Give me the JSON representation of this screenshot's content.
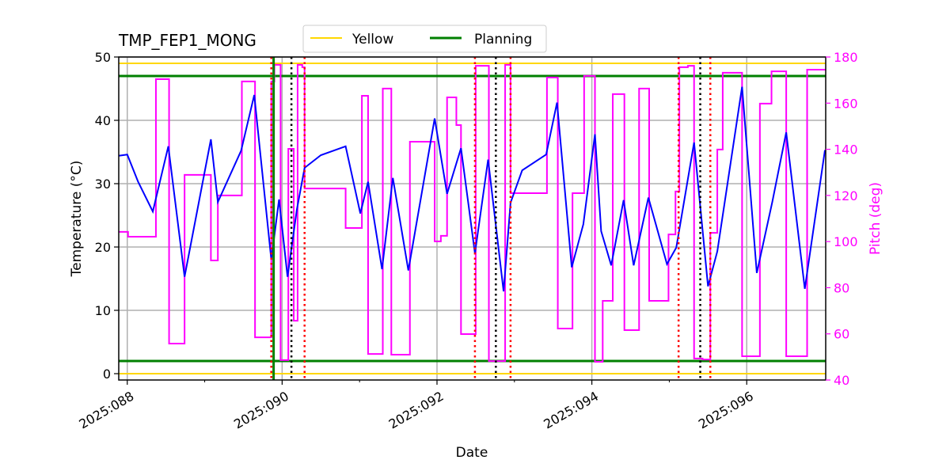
{
  "chart_data": {
    "type": "line",
    "title": "TMP_FEP1_MONG",
    "xlabel": "Date",
    "ylabel": "Temperature (°C)",
    "ylabel_right": "Pitch (deg)",
    "xlim": [
      87.89,
      97.02
    ],
    "ylim": [
      -1,
      50
    ],
    "ylim_right": [
      40,
      180
    ],
    "x_ticks": [
      88,
      90,
      92,
      94,
      96
    ],
    "x_tick_labels": [
      "2025:088",
      "2025:090",
      "2025:092",
      "2025:094",
      "2025:096"
    ],
    "x_minor_ticks": [
      89,
      91,
      93,
      95
    ],
    "y_ticks": [
      0,
      10,
      20,
      30,
      40,
      50
    ],
    "y_ticks_right": [
      40,
      60,
      80,
      100,
      120,
      140,
      160,
      180
    ],
    "grid": true,
    "legend_placement": "top-center",
    "colors": {
      "temperature": "#0000ff",
      "pitch": "#ff00ff",
      "yellow": "#ffd700",
      "planning": "#008000",
      "red_marker": "#ff0000",
      "black_marker": "#000000",
      "grid": "#b0b0b0"
    },
    "legend": [
      {
        "label": "Yellow",
        "color": "#ffd700"
      },
      {
        "label": "Planning",
        "color": "#008000"
      }
    ],
    "limits": {
      "yellow": [
        0,
        49
      ],
      "planning": [
        2,
        47
      ]
    },
    "temperature": [
      [
        87.89,
        34.4
      ],
      [
        88.0,
        34.6
      ],
      [
        88.14,
        30.3
      ],
      [
        88.33,
        25.6
      ],
      [
        88.53,
        35.9
      ],
      [
        88.74,
        15.3
      ],
      [
        89.08,
        37.0
      ],
      [
        89.17,
        27.1
      ],
      [
        89.47,
        35.2
      ],
      [
        89.64,
        44.0
      ],
      [
        89.86,
        18.0
      ],
      [
        89.96,
        27.5
      ],
      [
        90.07,
        15.3
      ],
      [
        90.19,
        25.9
      ],
      [
        90.29,
        32.5
      ],
      [
        90.5,
        34.5
      ],
      [
        90.82,
        35.9
      ],
      [
        91.01,
        25.3
      ],
      [
        91.11,
        30.3
      ],
      [
        91.29,
        16.5
      ],
      [
        91.43,
        30.9
      ],
      [
        91.63,
        16.3
      ],
      [
        91.97,
        40.3
      ],
      [
        92.13,
        28.4
      ],
      [
        92.31,
        35.6
      ],
      [
        92.49,
        19.0
      ],
      [
        92.66,
        33.8
      ],
      [
        92.86,
        13.0
      ],
      [
        92.95,
        27.0
      ],
      [
        93.1,
        32.1
      ],
      [
        93.41,
        34.6
      ],
      [
        93.55,
        42.8
      ],
      [
        93.74,
        16.8
      ],
      [
        93.89,
        23.6
      ],
      [
        94.04,
        37.8
      ],
      [
        94.12,
        22.5
      ],
      [
        94.25,
        17.1
      ],
      [
        94.41,
        27.4
      ],
      [
        94.54,
        17.1
      ],
      [
        94.73,
        27.8
      ],
      [
        94.97,
        17.3
      ],
      [
        95.09,
        19.9
      ],
      [
        95.32,
        36.5
      ],
      [
        95.5,
        13.8
      ],
      [
        95.62,
        19.3
      ],
      [
        95.94,
        45.3
      ],
      [
        96.13,
        15.9
      ],
      [
        96.33,
        27.1
      ],
      [
        96.51,
        38.1
      ],
      [
        96.75,
        13.4
      ],
      [
        97.01,
        35.3
      ]
    ],
    "pitch_steps": [
      [
        87.89,
        104.2
      ],
      [
        88.01,
        102.1
      ],
      [
        88.37,
        170.4
      ],
      [
        88.54,
        55.8
      ],
      [
        88.74,
        128.9
      ],
      [
        89.08,
        91.8
      ],
      [
        89.17,
        120.0
      ],
      [
        89.48,
        169.4
      ],
      [
        89.65,
        58.5
      ],
      [
        89.86,
        169.4
      ],
      [
        89.9,
        176.6
      ],
      [
        89.98,
        48.6
      ],
      [
        90.08,
        140.2
      ],
      [
        90.15,
        65.7
      ],
      [
        90.2,
        176.6
      ],
      [
        90.26,
        175.6
      ],
      [
        90.29,
        123.0
      ],
      [
        90.82,
        105.9
      ],
      [
        91.03,
        163.2
      ],
      [
        91.11,
        51.3
      ],
      [
        91.3,
        166.3
      ],
      [
        91.41,
        51.0
      ],
      [
        91.65,
        143.3
      ],
      [
        91.97,
        100.1
      ],
      [
        92.05,
        102.5
      ],
      [
        92.13,
        162.5
      ],
      [
        92.25,
        150.5
      ],
      [
        92.31,
        59.9
      ],
      [
        92.5,
        176.2
      ],
      [
        92.67,
        48.2
      ],
      [
        92.88,
        176.6
      ],
      [
        92.95,
        121.0
      ],
      [
        93.42,
        171.1
      ],
      [
        93.56,
        62.3
      ],
      [
        93.75,
        121.0
      ],
      [
        93.9,
        171.8
      ],
      [
        94.04,
        47.9
      ],
      [
        94.14,
        74.3
      ],
      [
        94.27,
        163.9
      ],
      [
        94.42,
        61.6
      ],
      [
        94.61,
        166.3
      ],
      [
        94.74,
        74.3
      ],
      [
        94.99,
        103.1
      ],
      [
        95.08,
        121.7
      ],
      [
        95.13,
        175.6
      ],
      [
        95.24,
        176.2
      ],
      [
        95.32,
        49.3
      ],
      [
        95.43,
        48.9
      ],
      [
        95.53,
        103.8
      ],
      [
        95.62,
        139.9
      ],
      [
        95.69,
        173.2
      ],
      [
        95.94,
        50.3
      ],
      [
        96.17,
        159.8
      ],
      [
        96.32,
        173.8
      ],
      [
        96.51,
        50.3
      ],
      [
        96.78,
        174.5
      ]
    ],
    "vlines_planning": [
      89.89
    ],
    "vlines_red_dotted": [
      89.86,
      90.29,
      92.49,
      92.95,
      95.12,
      95.53
    ],
    "vlines_black_dotted": [
      90.12,
      92.76,
      95.4
    ]
  }
}
